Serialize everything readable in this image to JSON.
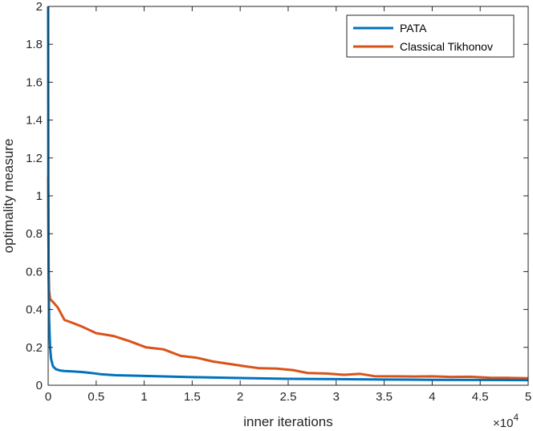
{
  "chart_data": {
    "type": "line",
    "title": "",
    "xlabel": "inner iterations",
    "ylabel": "optimality measure",
    "xlim": [
      0,
      50000
    ],
    "ylim": [
      0,
      2
    ],
    "x_multiplier_label": "×10",
    "x_multiplier_exp": "4",
    "xticks": [
      0,
      5000,
      10000,
      15000,
      20000,
      25000,
      30000,
      35000,
      40000,
      45000,
      50000
    ],
    "xtick_labels": [
      "0",
      "0.5",
      "1",
      "1.5",
      "2",
      "2.5",
      "3",
      "3.5",
      "4",
      "4.5",
      "5"
    ],
    "yticks": [
      0,
      0.2,
      0.4,
      0.6,
      0.8,
      1,
      1.2,
      1.4,
      1.6,
      1.8,
      2
    ],
    "ytick_labels": [
      "0",
      "0.2",
      "0.4",
      "0.6",
      "0.8",
      "1",
      "1.2",
      "1.4",
      "1.6",
      "1.8",
      "2"
    ],
    "grid": false,
    "legend_position": "top-right",
    "series": [
      {
        "name": "PATA",
        "color": "#0072BD",
        "x": [
          0,
          20,
          50,
          100,
          200,
          300,
          500,
          800,
          1200,
          1700,
          2500,
          3500,
          4500,
          5500,
          7000,
          10000,
          15000,
          20000,
          25000,
          30000,
          35000,
          40000,
          45000,
          50000
        ],
        "y": [
          2.0,
          1.1,
          0.6,
          0.35,
          0.2,
          0.14,
          0.1,
          0.085,
          0.078,
          0.075,
          0.073,
          0.07,
          0.065,
          0.058,
          0.053,
          0.049,
          0.043,
          0.038,
          0.034,
          0.032,
          0.03,
          0.029,
          0.028,
          0.027
        ]
      },
      {
        "name": "Classical Tikhonov",
        "color": "#D95319",
        "x": [
          0,
          50,
          100,
          200,
          500,
          1000,
          1700,
          2500,
          3500,
          5000,
          6800,
          8500,
          10200,
          12000,
          13800,
          15500,
          17200,
          19000,
          20500,
          22000,
          23800,
          25500,
          27000,
          29000,
          30800,
          32500,
          34000,
          36000,
          38000,
          40000,
          42000,
          44000,
          46000,
          48000,
          50000
        ],
        "y": [
          1.1,
          0.6,
          0.5,
          0.455,
          0.44,
          0.41,
          0.345,
          0.33,
          0.31,
          0.275,
          0.26,
          0.232,
          0.2,
          0.19,
          0.155,
          0.145,
          0.125,
          0.112,
          0.1,
          0.09,
          0.088,
          0.08,
          0.065,
          0.062,
          0.055,
          0.06,
          0.048,
          0.047,
          0.046,
          0.047,
          0.044,
          0.045,
          0.04,
          0.039,
          0.037
        ]
      }
    ]
  }
}
